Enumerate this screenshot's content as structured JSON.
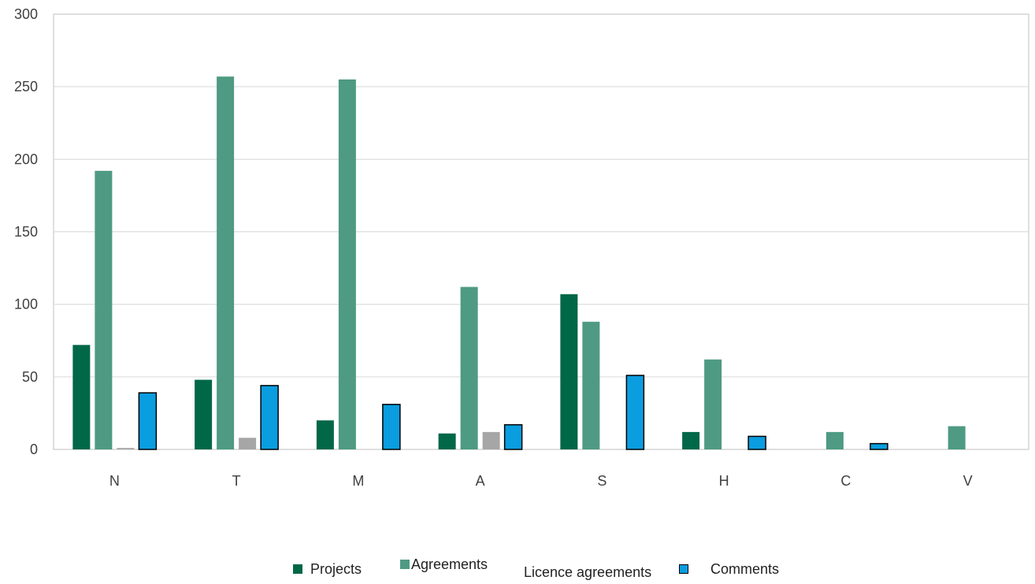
{
  "chart_data": {
    "type": "bar",
    "categories": [
      "N",
      "T",
      "M",
      "A",
      "S",
      "H",
      "C",
      "V"
    ],
    "series": [
      {
        "name": "Projects",
        "color": "#006747",
        "values": [
          72,
          48,
          20,
          11,
          107,
          12,
          0,
          0
        ]
      },
      {
        "name": "Agreements",
        "color": "#4E9A83",
        "values": [
          192,
          257,
          255,
          112,
          88,
          62,
          12,
          16
        ]
      },
      {
        "name": "Licence agreements",
        "color": "#A6A6A6",
        "values": [
          1,
          8,
          0,
          12,
          0,
          0,
          0,
          0
        ]
      },
      {
        "name": "Comments",
        "color": "#0A9DE0",
        "values": [
          39,
          44,
          31,
          17,
          51,
          9,
          4,
          0
        ]
      }
    ],
    "ylim": [
      0,
      300
    ],
    "yticks": [
      "0",
      "50",
      "100",
      "150",
      "200",
      "250",
      "300"
    ],
    "grid": true,
    "legend": "bottom",
    "title": "",
    "xlabel": "",
    "ylabel": ""
  }
}
